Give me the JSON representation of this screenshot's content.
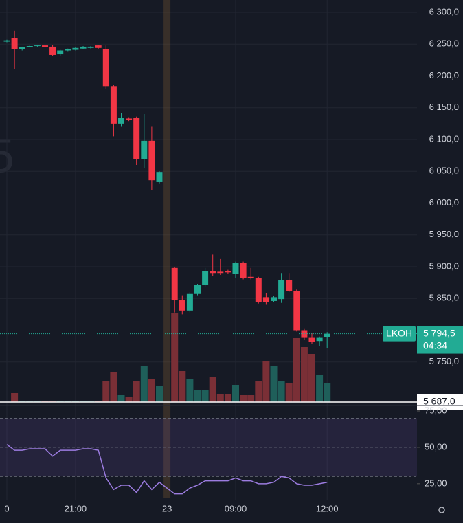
{
  "chart_data": {
    "type": "candlestick",
    "watermark": "5",
    "categories": [
      "0",
      null,
      null,
      null,
      null,
      null,
      null,
      null,
      null,
      "21:00",
      null,
      null,
      null,
      null,
      null,
      null,
      null,
      null,
      null,
      null,
      null,
      null,
      null,
      null,
      null,
      null,
      null,
      null,
      null,
      "09:00",
      null,
      null,
      null,
      null,
      null,
      null,
      null,
      null,
      null,
      null,
      null,
      "12:00"
    ],
    "session_break": "23",
    "open": [
      6254,
      6260,
      6242,
      6246,
      6247,
      6248,
      6246,
      6234,
      6240,
      6241,
      6243,
      6244,
      6248,
      6242,
      6184,
      6125,
      6133,
      6134,
      6069,
      6098,
      6033,
      5898,
      5847,
      5831,
      5857,
      5871,
      5893,
      5892,
      5893,
      5889,
      5906,
      5884,
      5882,
      5852,
      5846,
      5849,
      5879,
      5862,
      5800,
      5788,
      5783,
      5789
    ],
    "high": [
      6257,
      6271,
      6246,
      6248,
      6249,
      6249,
      6249,
      6241,
      6243,
      6245,
      6247,
      6247,
      6249,
      6248,
      6186,
      6142,
      6135,
      6136,
      6140,
      6120,
      6050,
      5900,
      5855,
      5860,
      5873,
      5898,
      5919,
      5912,
      5895,
      5908,
      5908,
      5898,
      5884,
      5858,
      5854,
      5890,
      5890,
      5864,
      5803,
      5796,
      5790,
      5797
    ],
    "low": [
      6253,
      6211,
      6240,
      6245,
      6246,
      6244,
      6231,
      6232,
      6239,
      6240,
      6242,
      6243,
      6243,
      6180,
      6105,
      6120,
      6129,
      6060,
      6055,
      6020,
      6030,
      5828,
      5825,
      5828,
      5855,
      5869,
      5885,
      5887,
      5889,
      5882,
      5880,
      5880,
      5842,
      5840,
      5844,
      5843,
      5860,
      5798,
      5785,
      5778,
      5775,
      5772
    ],
    "close": [
      6256,
      6242,
      6245,
      6247,
      6248,
      6245,
      6233,
      6240,
      6242,
      6244,
      6246,
      6246,
      6244,
      6184,
      6125,
      6134,
      6131,
      6069,
      6098,
      6036,
      6049,
      5847,
      5831,
      5857,
      5871,
      5893,
      5890,
      5890,
      5891,
      5906,
      5882,
      5882,
      5844,
      5844,
      5852,
      5879,
      5862,
      5800,
      5788,
      5782,
      5788,
      5794.5
    ],
    "volume": [
      0,
      13,
      2,
      2,
      2,
      2,
      2,
      2,
      2,
      2,
      2,
      2,
      2,
      30,
      43,
      10,
      8,
      30,
      52,
      33,
      24,
      130,
      45,
      33,
      18,
      18,
      37,
      12,
      12,
      25,
      10,
      10,
      30,
      60,
      53,
      30,
      28,
      93,
      80,
      70,
      40,
      28
    ],
    "rsi": [
      52,
      48,
      48,
      49,
      49,
      49,
      44,
      48,
      48,
      48,
      49,
      49,
      48,
      29,
      21,
      24,
      24,
      19,
      27,
      21,
      26,
      18,
      18,
      22,
      24,
      27,
      27,
      27,
      27,
      29,
      27,
      27,
      25,
      25,
      26,
      30,
      29,
      25,
      24,
      24,
      25,
      26
    ],
    "up_color": "#22ab94",
    "down_color": "#f23645",
    "ylim": [
      5687,
      6300
    ],
    "yticks": [
      {
        "value": 6300,
        "label": "6 300,0"
      },
      {
        "value": 6250,
        "label": "6 250,0"
      },
      {
        "value": 6200,
        "label": "6 200,0"
      },
      {
        "value": 6150,
        "label": "6 150,0"
      },
      {
        "value": 6100,
        "label": "6 100,0"
      },
      {
        "value": 6050,
        "label": "6 050,0"
      },
      {
        "value": 6000,
        "label": "6 000,0"
      },
      {
        "value": 5950,
        "label": "5 950,0"
      },
      {
        "value": 5900,
        "label": "5 900,0"
      },
      {
        "value": 5850,
        "label": "5 850,0"
      },
      {
        "value": 5750,
        "label": "5 750,0"
      }
    ],
    "last_price": {
      "symbol": "LKOH",
      "value": 5794.5,
      "label": "5 794,5",
      "countdown": "04:34"
    },
    "marker": {
      "value": 5687,
      "label": "5 687,0"
    },
    "rsi_ylim": [
      15,
      75
    ],
    "rsi_yticks": [
      {
        "value": 75,
        "label": "75,00"
      },
      {
        "value": 50,
        "label": "50,00"
      },
      {
        "value": 25,
        "label": "25,00"
      }
    ],
    "rsi_levels": [
      70,
      50,
      30
    ]
  }
}
